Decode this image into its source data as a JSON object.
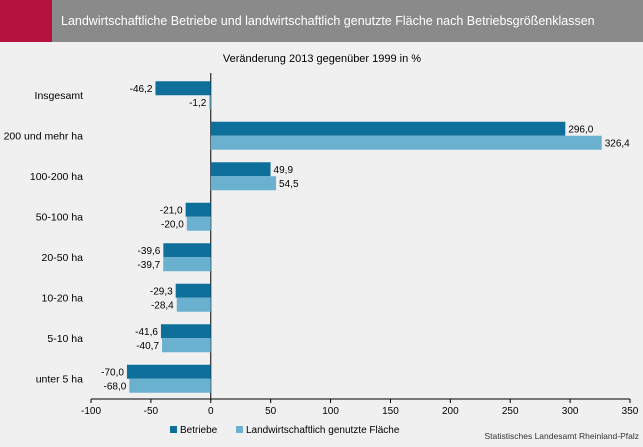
{
  "header": {
    "title": "Landwirtschaftliche Betriebe und landwirtschaftlich genutzte Fläche nach Betriebsgrößenklassen"
  },
  "source": "Statistisches Landesamt Rheinland-Pfalz",
  "colors": {
    "betriebe": "#0f6f9b",
    "flaeche": "#69b1cf",
    "accent": "#b5123e",
    "header": "#8a8a8a"
  },
  "chart_data": {
    "type": "bar",
    "orientation": "horizontal",
    "title": "Veränderung 2013 gegenüber 1999 in %",
    "categories": [
      "Insgesamt",
      "200 und mehr ha",
      "100-200 ha",
      "50-100 ha",
      "20-50 ha",
      "10-20 ha",
      "5-10 ha",
      "unter 5 ha"
    ],
    "series": [
      {
        "name": "Betriebe",
        "values": [
          -46.2,
          296.0,
          49.9,
          -21.0,
          -39.6,
          -29.3,
          -41.6,
          -70.0
        ],
        "labels": [
          "-46,2",
          "296,0",
          "49,9",
          "-21,0",
          "-39,6",
          "-29,3",
          "-41,6",
          "-70,0"
        ]
      },
      {
        "name": "Landwirtschaftlich genutzte Fläche",
        "values": [
          -1.2,
          326.4,
          54.5,
          -20.0,
          -39.7,
          -28.4,
          -40.7,
          -68.0
        ],
        "labels": [
          "-1,2",
          "326,4",
          "54,5",
          "-20,0",
          "-39,7",
          "-28,4",
          "-40,7",
          "-68,0"
        ]
      }
    ],
    "xlim": [
      -100,
      350
    ],
    "xticks": [
      -100,
      -50,
      0,
      50,
      100,
      150,
      200,
      250,
      300,
      350
    ],
    "xtick_labels": [
      "-100",
      "-50",
      "0",
      "50",
      "100",
      "150",
      "200",
      "250",
      "300",
      "350"
    ],
    "grid": false,
    "legend_position": "bottom-center"
  }
}
